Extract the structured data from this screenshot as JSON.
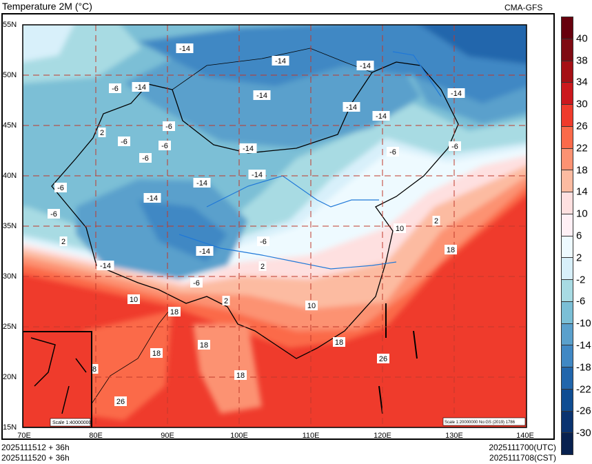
{
  "header": {
    "title": "Temperature  2M (°C)",
    "model": "CMA-GFS"
  },
  "footer": {
    "init_utc": "2025111512 + 36h",
    "init_cst": "2025111520 + 36h",
    "valid_utc": "2025111700(UTC)",
    "valid_cst": "2025111708(CST)"
  },
  "axes": {
    "lat_labels": [
      "55N",
      "50N",
      "45N",
      "40N",
      "35N",
      "30N",
      "25N",
      "20N",
      "15N"
    ],
    "lon_labels": [
      "70E",
      "80E",
      "90E",
      "100E",
      "110E",
      "120E",
      "130E",
      "140E"
    ]
  },
  "inset": {
    "scale_label": "Scale 1:40000000"
  },
  "main_scale_label": "Scale 1:20000000 No:GS (2019) 1786",
  "colorbar": {
    "labels": [
      "40",
      "38",
      "34",
      "30",
      "26",
      "22",
      "18",
      "14",
      "10",
      "6",
      "2",
      "-2",
      "-6",
      "-10",
      "-14",
      "-18",
      "-22",
      "-26",
      "-30"
    ],
    "colors": [
      "#67000d",
      "#7f0a12",
      "#a50f15",
      "#cb181d",
      "#ef3b2c",
      "#fb6a4a",
      "#fc9272",
      "#fcbba1",
      "#fee0e0",
      "#fff0f5",
      "#eefaff",
      "#d8f0fa",
      "#a8dbe3",
      "#7bbfd6",
      "#5aa0cc",
      "#4088c4",
      "#2166ac",
      "#0f4d92",
      "#0a3370",
      "#08214f"
    ]
  },
  "contour_labels": [
    "-14",
    "-14",
    "-14",
    "-14",
    "-14",
    "-14",
    "-14",
    "-6",
    "-14",
    "-6",
    "2",
    "-6",
    "-6",
    "-6",
    "-14",
    "-14",
    "-14",
    "-6",
    "-6",
    "-6",
    "-14",
    "-6",
    "2",
    "-14",
    "-6",
    "10",
    "2",
    "18",
    "-14",
    "2",
    "-6",
    "10",
    "2",
    "18",
    "10",
    "18",
    "18",
    "18",
    "26",
    "8",
    "18",
    "26"
  ]
}
